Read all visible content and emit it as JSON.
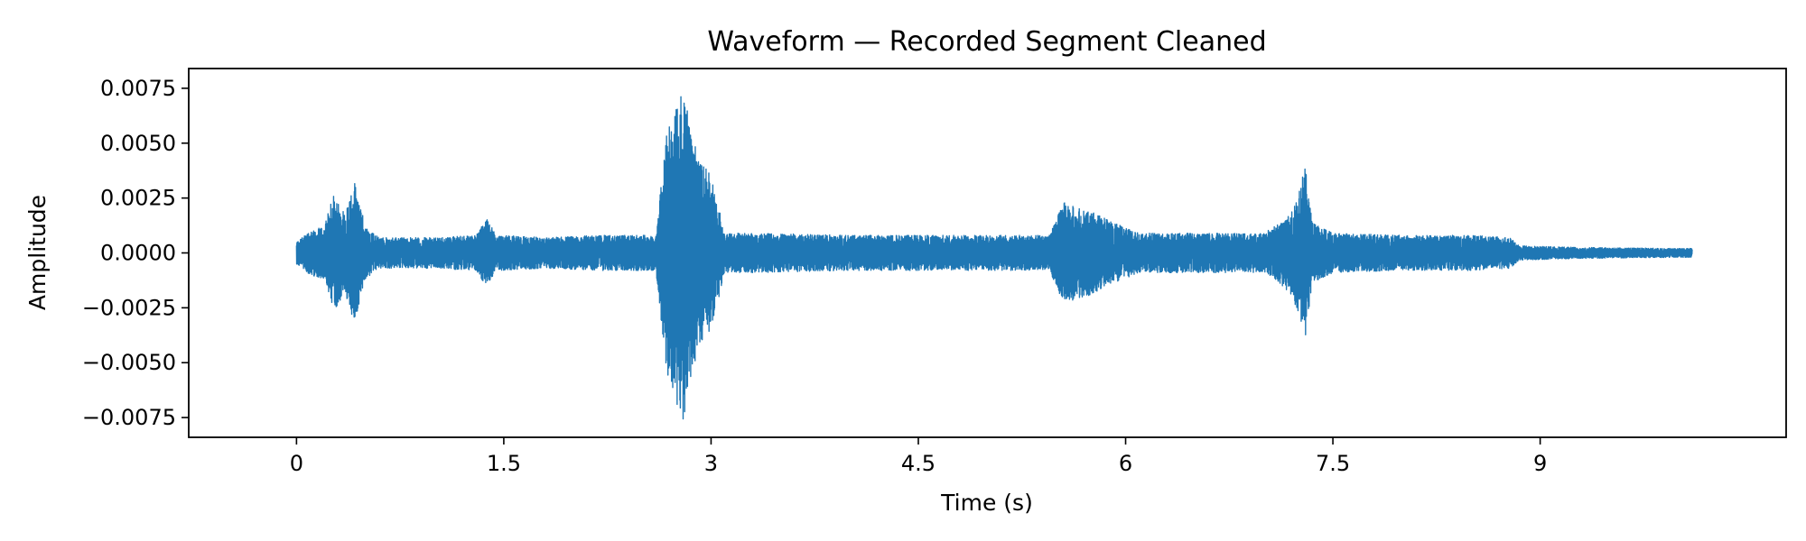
{
  "chart_data": {
    "type": "line",
    "title": "Waveform — Recorded Segment Cleaned",
    "xlabel": "Time (s)",
    "ylabel": "Amplitude",
    "xlim": [
      -0.78,
      10.78
    ],
    "ylim": [
      -0.0084,
      0.0084
    ],
    "x_ticks": [
      0,
      1.5,
      3,
      4.5,
      6,
      7.5,
      9
    ],
    "x_tick_labels": [
      "0",
      "1.5",
      "3",
      "4.5",
      "6",
      "7.5",
      "9"
    ],
    "y_ticks": [
      0.0075,
      0.005,
      0.0025,
      0,
      -0.0025,
      -0.005,
      -0.0075
    ],
    "y_tick_labels": [
      "0.0075",
      "0.0050",
      "0.0025",
      "0.0000",
      "−0.0025",
      "−0.0050",
      "−0.0075"
    ],
    "grid": false,
    "legend": "none",
    "color": "#1f77b4",
    "duration_s": 10.1,
    "envelope": {
      "t": [
        0.0,
        0.1,
        0.2,
        0.27,
        0.35,
        0.42,
        0.5,
        0.6,
        1.0,
        1.3,
        1.37,
        1.45,
        1.8,
        2.2,
        2.6,
        2.68,
        2.75,
        2.8,
        2.85,
        2.92,
        3.0,
        3.1,
        3.3,
        4.0,
        4.5,
        5.0,
        5.45,
        5.55,
        5.75,
        5.9,
        6.1,
        6.5,
        7.0,
        7.1,
        7.2,
        7.3,
        7.35,
        7.5,
        8.0,
        8.5,
        8.78,
        8.85,
        9.0,
        9.3,
        10.0,
        10.1
      ],
      "amp": [
        0.0005,
        0.001,
        0.0012,
        0.0027,
        0.0018,
        0.0032,
        0.0012,
        0.0007,
        0.0007,
        0.0008,
        0.0016,
        0.0008,
        0.0007,
        0.0008,
        0.0008,
        0.0055,
        0.007,
        0.0076,
        0.0058,
        0.0042,
        0.0035,
        0.0009,
        0.0009,
        0.0008,
        0.0008,
        0.0008,
        0.0008,
        0.0023,
        0.0019,
        0.0014,
        0.0009,
        0.0009,
        0.0009,
        0.0013,
        0.0019,
        0.0039,
        0.0014,
        0.0009,
        0.0008,
        0.0008,
        0.0007,
        0.00032,
        0.0003,
        0.00025,
        0.0002,
        0.0002
      ]
    }
  }
}
